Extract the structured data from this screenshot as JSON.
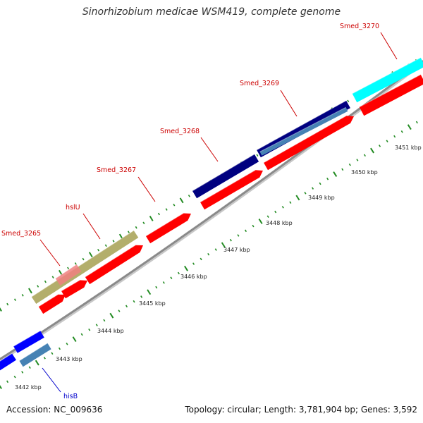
{
  "title": "Sinorhizobium medicae WSM419, complete genome",
  "footer": {
    "accession": "Accession: NC_009636",
    "summary": "Topology: circular; Length: 3,781,904 bp; Genes: 3,592"
  },
  "colors": {
    "cds": "#ff0000",
    "gene_label": "#cc0000",
    "navy": "#000080",
    "olive": "#b3ae6b",
    "cyan": "#00ffff",
    "blue": "#0000ff",
    "steel": "#4682b4",
    "blue_label": "#0000cc",
    "backbone": "#888888",
    "ticks": "#228b22"
  },
  "scale": {
    "ticks": [
      {
        "label": "3442 kbp"
      },
      {
        "label": "3443 kbp"
      },
      {
        "label": "3444 kbp"
      },
      {
        "label": "3445 kbp"
      },
      {
        "label": "3446 kbp"
      },
      {
        "label": "3447 kbp"
      },
      {
        "label": "3448 kbp"
      },
      {
        "label": "3449 kbp"
      },
      {
        "label": "3450 kbp"
      },
      {
        "label": "3451 kbp"
      }
    ]
  },
  "gene_labels": [
    {
      "text": "Smed_3265",
      "color": "gene_label"
    },
    {
      "text": "hslU",
      "color": "gene_label"
    },
    {
      "text": "Smed_3267",
      "color": "gene_label"
    },
    {
      "text": "Smed_3268",
      "color": "gene_label"
    },
    {
      "text": "Smed_3269",
      "color": "gene_label"
    },
    {
      "text": "Smed_3270",
      "color": "gene_label"
    },
    {
      "text": "hisB",
      "color": "blue_label"
    }
  ]
}
